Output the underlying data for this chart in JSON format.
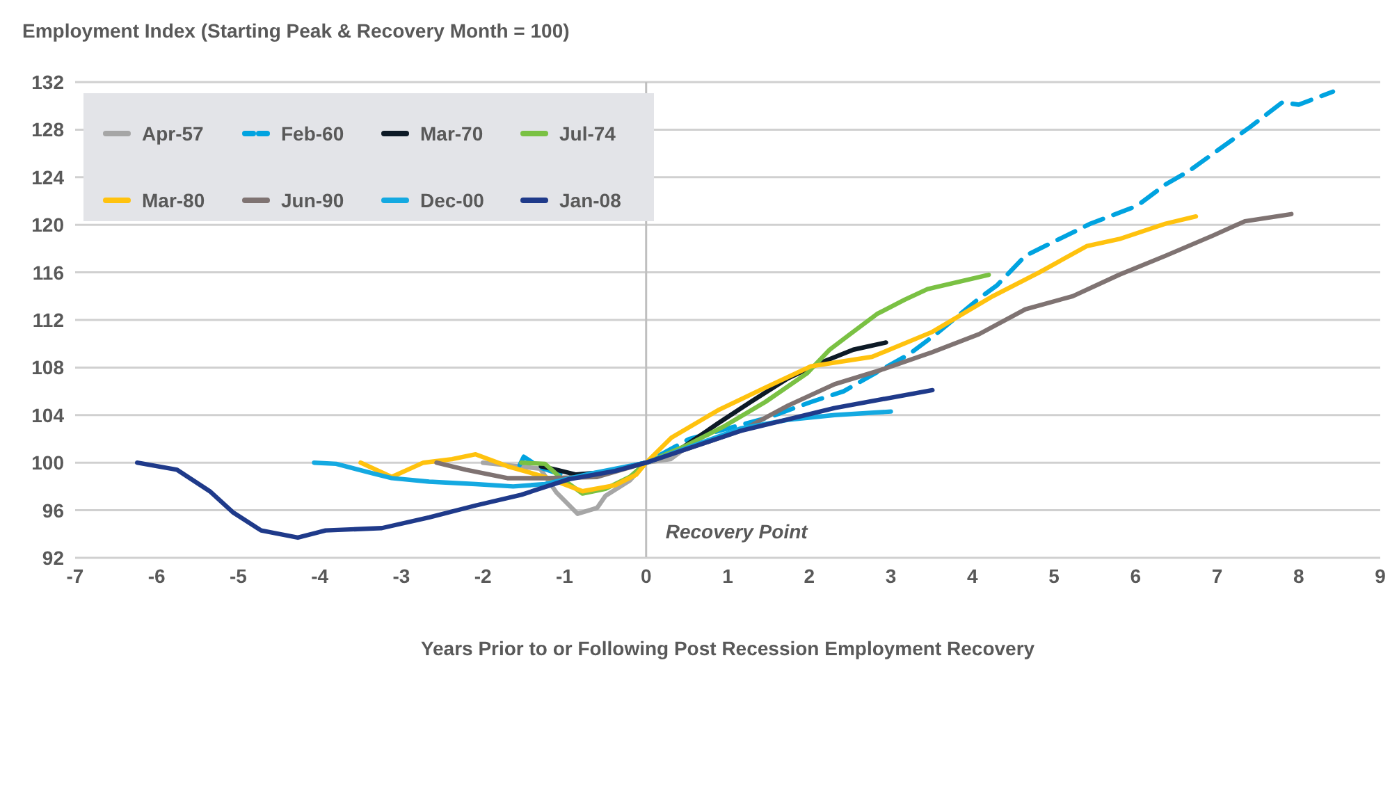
{
  "chart_data": {
    "type": "line",
    "title": "Employment Index (Starting Peak & Recovery Month = 100)",
    "xlabel": "Years Prior to or Following Post Recession Employment Recovery",
    "xlim": [
      -7,
      9
    ],
    "xticks": [
      -7,
      -6,
      -5,
      -4,
      -3,
      -2,
      -1,
      0,
      1,
      2,
      3,
      4,
      5,
      6,
      7,
      8,
      9
    ],
    "ylim": [
      92,
      132
    ],
    "yticks": [
      92,
      96,
      100,
      104,
      108,
      112,
      116,
      120,
      124,
      128,
      132
    ],
    "grid": "y",
    "legend": "top left",
    "marker": "none",
    "ref_lines": [
      {
        "axis": "x",
        "value": 0,
        "label": "Recovery Point",
        "color": "#bfbfbf"
      }
    ],
    "series": [
      {
        "name": "Apr-57",
        "color": "#a6a6a6",
        "x": [
          -2.0,
          -1.3,
          -1.1,
          -0.84,
          -0.6,
          -0.5,
          -0.2,
          0,
          0.3,
          0.4,
          0.6
        ],
        "values": [
          100,
          99.5,
          97.5,
          95.7,
          96.2,
          97.2,
          98.5,
          100,
          100.3,
          100.8,
          102
        ]
      },
      {
        "name": "Feb-60",
        "color": "#00a3e0",
        "line_style": "dashed",
        "x": [
          -1.55,
          -1.5,
          -1.3,
          -1.0,
          -0.5,
          0,
          0.53,
          1.5,
          2.02,
          2.42,
          2.88,
          3.22,
          3.57,
          4.08,
          4.3,
          4.65,
          5.45,
          6.02,
          6.37,
          6.65,
          7.4,
          7.8,
          8.0,
          8.42
        ],
        "values": [
          99.8,
          100.5,
          99.6,
          98.9,
          99.2,
          100,
          102,
          103.8,
          105.1,
          106.0,
          107.8,
          109.1,
          110.9,
          113.8,
          114.9,
          117.4,
          120.1,
          121.6,
          123.4,
          124.5,
          128.2,
          130.3,
          130.1,
          131.2
        ]
      },
      {
        "name": "Mar-70",
        "color": "#0d1a26",
        "x": [
          -1.29,
          -1.1,
          -0.86,
          -0.5,
          0,
          0.43,
          0.88,
          1.28,
          1.74,
          2.14,
          2.54,
          2.94
        ],
        "values": [
          99.7,
          99.4,
          99.0,
          99.2,
          100,
          101.2,
          103.3,
          105.1,
          107.1,
          108.4,
          109.5,
          110.1
        ]
      },
      {
        "name": "Jul-74",
        "color": "#7ac143",
        "x": [
          -1.53,
          -1.24,
          -1.06,
          -0.78,
          -0.5,
          -0.2,
          0,
          0.48,
          0.94,
          1.46,
          1.97,
          2.25,
          2.48,
          2.83,
          3.17,
          3.45,
          4.2
        ],
        "values": [
          100,
          99.9,
          98.8,
          97.4,
          97.8,
          98.8,
          100,
          101.4,
          103,
          105.1,
          107.5,
          109.5,
          110.7,
          112.5,
          113.7,
          114.6,
          115.8
        ]
      },
      {
        "name": "Mar-80",
        "color": "#ffc20e",
        "x": [
          -3.5,
          -3.12,
          -2.73,
          -2.38,
          -2.09,
          -1.7,
          -1.24,
          -0.78,
          -0.38,
          -0.12,
          0,
          0.31,
          0.88,
          1.46,
          2.02,
          2.77,
          3.51,
          4.25,
          4.82,
          5.4,
          5.8,
          6.37,
          6.74
        ],
        "values": [
          100,
          98.8,
          100,
          100.3,
          100.7,
          99.7,
          98.8,
          97.6,
          98.1,
          99,
          100,
          102.1,
          104.4,
          106.3,
          108.1,
          108.9,
          111.0,
          114,
          116,
          118.2,
          118.8,
          120.1,
          120.7
        ]
      },
      {
        "name": "Jun-90",
        "color": "#7f7372",
        "x": [
          -2.57,
          -2.21,
          -1.7,
          -1.24,
          -0.6,
          0,
          1.17,
          1.74,
          2.31,
          2.88,
          3.51,
          4.08,
          4.65,
          5.23,
          5.8,
          6.37,
          6.95,
          7.34,
          7.91
        ],
        "values": [
          100,
          99.4,
          98.7,
          98.7,
          98.8,
          100,
          102.7,
          104.8,
          106.6,
          107.8,
          109.3,
          110.8,
          112.9,
          114,
          115.8,
          117.4,
          119.1,
          120.3,
          120.9
        ]
      },
      {
        "name": "Dec-00",
        "color": "#14a9e1",
        "x": [
          -4.07,
          -3.8,
          -3.35,
          -3.12,
          -2.66,
          -2.09,
          -1.63,
          -1.24,
          -0.67,
          0,
          1.17,
          1.74,
          2.31,
          3.0
        ],
        "values": [
          100,
          99.9,
          99.1,
          98.7,
          98.4,
          98.2,
          98.0,
          98.2,
          99.1,
          100,
          102.9,
          103.6,
          104,
          104.3
        ]
      },
      {
        "name": "Jan-08",
        "color": "#1f3a8a",
        "x": [
          -6.24,
          -5.75,
          -5.35,
          -5.06,
          -4.72,
          -4.27,
          -3.93,
          -3.24,
          -2.66,
          -2.09,
          -1.53,
          -0.95,
          -0.38,
          0,
          1.17,
          2.31,
          3.51
        ],
        "values": [
          100,
          99.4,
          97.6,
          95.8,
          94.3,
          93.7,
          94.3,
          94.5,
          95.4,
          96.4,
          97.3,
          98.6,
          99.3,
          100,
          102.7,
          104.6,
          106.1
        ]
      }
    ]
  }
}
